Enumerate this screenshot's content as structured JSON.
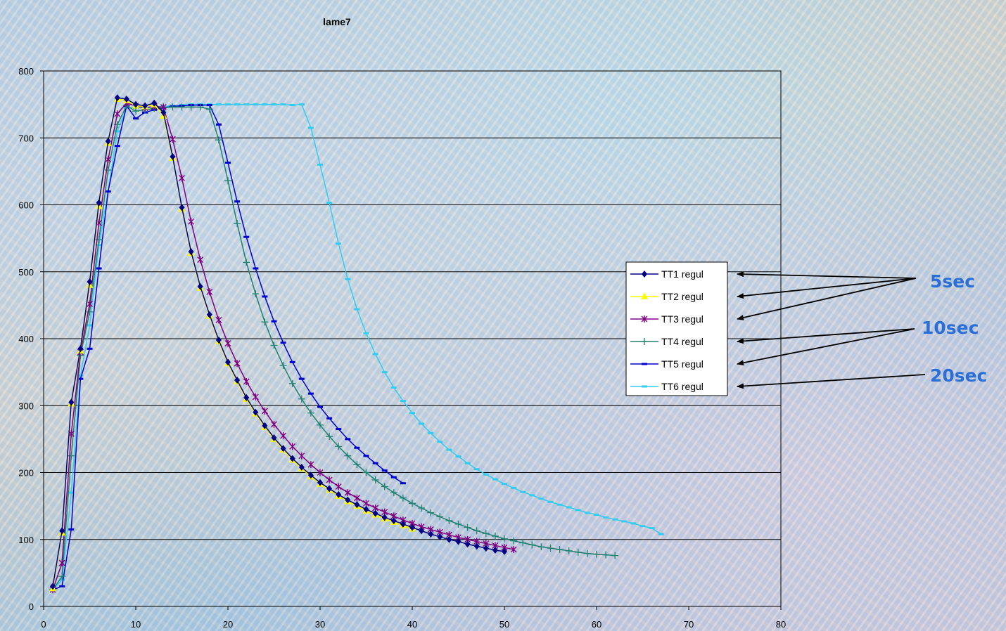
{
  "chart_data": {
    "type": "line",
    "title": "lame7",
    "xlabel": "",
    "ylabel": "",
    "xlim": [
      0,
      80
    ],
    "ylim": [
      0,
      800
    ],
    "xticks": [
      0,
      10,
      20,
      30,
      40,
      50,
      60,
      70,
      80
    ],
    "yticks": [
      0,
      100,
      200,
      300,
      400,
      500,
      600,
      700,
      800
    ],
    "grid": "horizontal",
    "legend_position": "right",
    "series": [
      {
        "name": "TT1 regul",
        "color": "#000080",
        "marker": "diamond",
        "x": [
          1,
          2,
          3,
          4,
          5,
          6,
          7,
          8,
          9,
          10,
          11,
          12,
          13,
          14,
          15,
          16,
          17,
          18,
          19,
          20,
          21,
          22,
          23,
          24,
          25,
          26,
          27,
          28,
          29,
          30,
          31,
          32,
          33,
          34,
          35,
          36,
          37,
          38,
          39,
          40,
          41,
          42,
          43,
          44,
          45,
          46,
          47,
          48,
          49,
          50
        ],
        "y": [
          30,
          113,
          305,
          385,
          485,
          603,
          695,
          760,
          758,
          750,
          748,
          752,
          738,
          672,
          596,
          530,
          478,
          436,
          398,
          365,
          338,
          312,
          290,
          270,
          252,
          236,
          221,
          208,
          196,
          185,
          176,
          167,
          159,
          152,
          145,
          139,
          133,
          128,
          123,
          118,
          113,
          108,
          104,
          100,
          97,
          93,
          90,
          87,
          84,
          82
        ]
      },
      {
        "name": "TT2 regul",
        "color": "#ffff00",
        "marker": "triangle",
        "x": [
          1,
          2,
          3,
          4,
          5,
          6,
          7,
          8,
          9,
          10,
          11,
          12,
          13,
          14,
          15,
          16,
          17,
          18,
          19,
          20,
          21,
          22,
          23,
          24,
          25,
          26,
          27,
          28,
          29,
          30,
          31,
          32,
          33,
          34,
          35,
          36,
          37,
          38,
          39,
          40
        ],
        "y": [
          27,
          110,
          303,
          382,
          480,
          598,
          692,
          758,
          756,
          748,
          747,
          750,
          733,
          670,
          594,
          528,
          476,
          434,
          396,
          363,
          336,
          310,
          288,
          268,
          250,
          234,
          219,
          206,
          194,
          183,
          174,
          165,
          157,
          150,
          143,
          137,
          131,
          126,
          121,
          116
        ]
      },
      {
        "name": "TT3 regul",
        "color": "#800080",
        "marker": "star",
        "x": [
          1,
          2,
          3,
          4,
          5,
          6,
          7,
          8,
          9,
          10,
          11,
          12,
          13,
          14,
          15,
          16,
          17,
          18,
          19,
          20,
          21,
          22,
          23,
          24,
          25,
          26,
          27,
          28,
          29,
          30,
          31,
          32,
          33,
          34,
          35,
          36,
          37,
          38,
          39,
          40,
          41,
          42,
          43,
          44,
          45,
          46,
          47,
          48,
          49,
          50,
          51
        ],
        "y": [
          25,
          65,
          258,
          380,
          452,
          573,
          668,
          736,
          752,
          748,
          745,
          747,
          746,
          698,
          640,
          575,
          518,
          470,
          428,
          393,
          363,
          336,
          313,
          292,
          272,
          255,
          239,
          225,
          212,
          200,
          189,
          179,
          170,
          162,
          154,
          147,
          141,
          135,
          129,
          124,
          119,
          115,
          111,
          107,
          103,
          100,
          97,
          94,
          91,
          88,
          85
        ]
      },
      {
        "name": "TT4 regul",
        "color": "#208070",
        "marker": "plus",
        "x": [
          1,
          2,
          3,
          4,
          5,
          6,
          7,
          8,
          9,
          10,
          11,
          12,
          13,
          14,
          15,
          16,
          17,
          18,
          19,
          20,
          21,
          22,
          23,
          24,
          25,
          26,
          27,
          28,
          29,
          30,
          31,
          32,
          33,
          34,
          35,
          36,
          37,
          38,
          39,
          40,
          41,
          42,
          43,
          44,
          45,
          46,
          47,
          48,
          49,
          50,
          51,
          52,
          53,
          54,
          55,
          56,
          57,
          58,
          59,
          60,
          61,
          62
        ],
        "y": [
          25,
          45,
          225,
          375,
          440,
          548,
          652,
          720,
          748,
          740,
          742,
          744,
          745,
          746,
          746,
          746,
          746,
          743,
          697,
          636,
          572,
          514,
          467,
          425,
          390,
          360,
          333,
          310,
          289,
          271,
          254,
          239,
          225,
          212,
          200,
          189,
          179,
          170,
          162,
          154,
          147,
          140,
          134,
          128,
          123,
          118,
          113,
          109,
          105,
          101,
          98,
          95,
          92,
          89,
          87,
          85,
          83,
          81,
          79,
          78,
          77,
          76
        ]
      },
      {
        "name": "TT5 regul",
        "color": "#0000cc",
        "marker": "dash",
        "x": [
          1,
          2,
          3,
          4,
          5,
          6,
          7,
          8,
          9,
          10,
          11,
          12,
          13,
          14,
          15,
          16,
          17,
          18,
          19,
          20,
          21,
          22,
          23,
          24,
          25,
          26,
          27,
          28,
          29,
          30,
          31,
          32,
          33,
          34,
          35,
          36,
          37,
          38,
          39
        ],
        "y": [
          25,
          30,
          115,
          340,
          385,
          505,
          620,
          688,
          748,
          729,
          738,
          742,
          745,
          747,
          748,
          749,
          749,
          749,
          720,
          663,
          605,
          552,
          505,
          463,
          426,
          394,
          365,
          340,
          318,
          298,
          281,
          265,
          250,
          237,
          225,
          214,
          203,
          193,
          184
        ]
      },
      {
        "name": "TT6 regul",
        "color": "#33ccee",
        "marker": "dash",
        "x": [
          1,
          2,
          3,
          4,
          5,
          6,
          7,
          8,
          9,
          10,
          11,
          12,
          13,
          14,
          15,
          16,
          17,
          18,
          19,
          20,
          21,
          22,
          23,
          24,
          25,
          26,
          27,
          28,
          29,
          30,
          31,
          32,
          33,
          34,
          35,
          36,
          37,
          38,
          39,
          40,
          41,
          42,
          43,
          44,
          45,
          46,
          47,
          48,
          49,
          50,
          51,
          52,
          53,
          54,
          55,
          56,
          57,
          58,
          59,
          60,
          61,
          62,
          63,
          64,
          65,
          66,
          67
        ],
        "y": [
          25,
          40,
          170,
          345,
          420,
          540,
          620,
          710,
          745,
          745,
          745,
          746,
          747,
          748,
          749,
          750,
          750,
          750,
          750,
          750,
          750,
          750,
          750,
          750,
          750,
          750,
          749,
          750,
          715,
          660,
          603,
          542,
          489,
          444,
          408,
          377,
          350,
          327,
          307,
          289,
          273,
          259,
          246,
          234,
          224,
          214,
          205,
          197,
          190,
          183,
          177,
          171,
          166,
          161,
          156,
          152,
          148,
          144,
          140,
          137,
          133,
          130,
          127,
          124,
          120,
          117,
          108
        ]
      }
    ]
  },
  "annotations": [
    {
      "label": "5sec",
      "targets": [
        "TT1 regul",
        "TT2 regul",
        "TT3 regul"
      ]
    },
    {
      "label": "10sec",
      "targets": [
        "TT4 regul",
        "TT5 regul"
      ]
    },
    {
      "label": "20sec",
      "targets": [
        "TT6 regul"
      ]
    }
  ]
}
